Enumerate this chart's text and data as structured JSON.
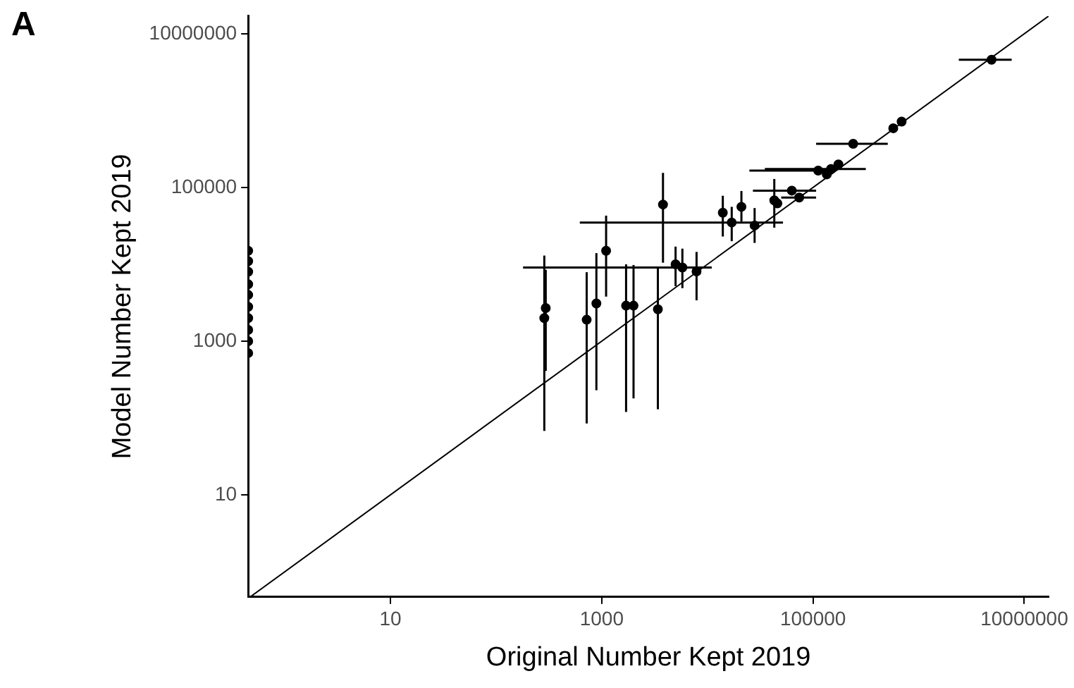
{
  "chart_data": {
    "type": "scatter",
    "xlabel": "Original Number Kept 2019",
    "ylabel": "Model Number Kept 2019",
    "annotations": [
      "A"
    ],
    "log": "xy",
    "grid": false,
    "legend": false,
    "marker": "circle",
    "xlim": [
      0.45,
      17000000
    ],
    "ylim": [
      0.47,
      17000000
    ],
    "xticks": [
      10,
      1000,
      100000,
      10000000
    ],
    "yticks": [
      10,
      1000,
      100000,
      10000000
    ],
    "series": [
      {
        "color": "#000000",
        "x": [
          286,
          295,
          720,
          890,
          1100,
          1700,
          2000,
          3400,
          3800,
          5000,
          5800,
          7900,
          14000,
          17000,
          21000,
          28000,
          43000,
          46000,
          63000,
          74000,
          112000,
          135000,
          148000,
          174000,
          240000,
          575000,
          690000,
          4900000
        ],
        "values": [
          2000,
          2700,
          1900,
          3100,
          15000,
          2900,
          2900,
          2600,
          60000,
          10000,
          9100,
          8100,
          47000,
          35000,
          56000,
          32000,
          68000,
          62000,
          91000,
          74000,
          166000,
          148000,
          174000,
          200000,
          370000,
          590000,
          720000,
          4600000
        ],
        "errors": [
          [
            68,
            13000
          ],
          [
            410,
            8500
          ],
          [
            85,
            7900
          ],
          [
            230,
            14000
          ],
          [
            3800,
            43000
          ],
          [
            120,
            10000
          ],
          [
            180,
            9800
          ],
          [
            130,
            9100
          ],
          [
            10500,
            155000
          ],
          [
            5200,
            17000
          ],
          [
            4900,
            16000
          ],
          [
            3400,
            14500
          ],
          [
            23000,
            78000
          ],
          [
            20000,
            56000
          ],
          [
            36000,
            90000
          ],
          [
            19000,
            54000
          ],
          [
            30000,
            129000
          ],
          null,
          null,
          null,
          null,
          null,
          null,
          null,
          null,
          null,
          null,
          null
        ],
        "xerrors": [
          null,
          null,
          null,
          null,
          null,
          null,
          null,
          null,
          null,
          null,
          [
            180,
            11000
          ],
          null,
          null,
          [
            620,
            52000
          ],
          null,
          null,
          null,
          null,
          [
            27000,
            107000
          ],
          [
            50000,
            107000
          ],
          [
            25000,
            160000
          ],
          null,
          [
            35000,
            316000
          ],
          null,
          [
            107000,
            510000
          ],
          null,
          null,
          [
            2400000,
            7600000
          ]
        ]
      },
      {
        "color": "#000000",
        "x": [
          0.45,
          0.45,
          0.45,
          0.45,
          0.45,
          0.45,
          0.45,
          0.45,
          0.45,
          0.45
        ],
        "values": [
          15000,
          11000,
          8000,
          5500,
          4000,
          2800,
          2000,
          1400,
          1000,
          700
        ]
      },
      {
        "type": "line",
        "color": "#000000",
        "marker": "none",
        "x": [
          0.47,
          17000000
        ],
        "values": [
          0.47,
          17000000
        ]
      }
    ]
  }
}
